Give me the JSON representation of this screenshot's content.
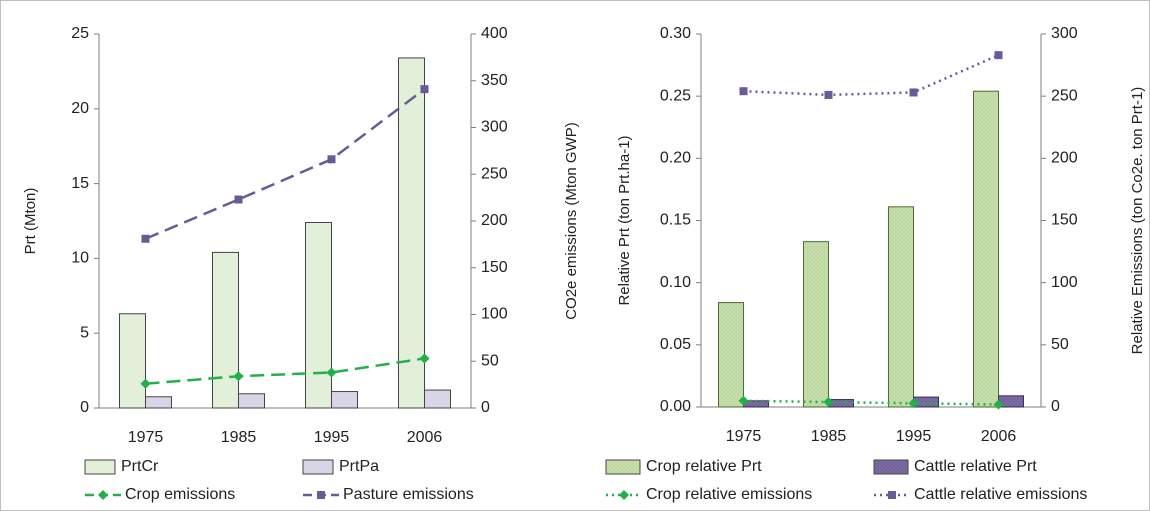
{
  "chart_data": [
    {
      "type": "bar",
      "categories": [
        "1975",
        "1985",
        "1995",
        "2006"
      ],
      "ylabel": "Prt (Mton)",
      "y2label": "CO2e emissions  (Mton GWP)",
      "ylim": [
        0,
        25
      ],
      "y2lim": [
        0,
        400
      ],
      "yticks": [
        "0",
        "5",
        "10",
        "15",
        "20",
        "25"
      ],
      "y2ticks": [
        "0",
        "50",
        "100",
        "150",
        "200",
        "250",
        "300",
        "350",
        "400"
      ],
      "series": [
        {
          "name": "PrtCr",
          "kind": "bar",
          "axis": "left",
          "color": "#e2efd9",
          "values": [
            6.3,
            10.4,
            12.4,
            23.4
          ]
        },
        {
          "name": "PrtPa",
          "kind": "bar",
          "axis": "left",
          "color": "#dad5e6",
          "values": [
            0.75,
            0.95,
            1.1,
            1.2
          ]
        },
        {
          "name": "Crop emissions",
          "kind": "line",
          "axis": "right",
          "color": "#22b04b",
          "dash": "long-dash",
          "marker": "diamond",
          "values": [
            26,
            34,
            38,
            53
          ]
        },
        {
          "name": "Pasture emissions",
          "kind": "line",
          "axis": "right",
          "color": "#6a5a96",
          "dash": "long-dash",
          "marker": "square",
          "values": [
            181,
            223,
            266,
            341
          ]
        }
      ],
      "legend": "bottom",
      "grid": false
    },
    {
      "type": "bar",
      "categories": [
        "1975",
        "1985",
        "1995",
        "2006"
      ],
      "ylabel": "Relative  Prt  (ton Prt.ha-1)",
      "y2label": "Relative  Emissions  (ton Co2e. ton Prt-1)",
      "ylim": [
        0,
        0.3
      ],
      "y2lim": [
        0,
        300
      ],
      "yticks": [
        "0.00",
        "0.05",
        "0.10",
        "0.15",
        "0.20",
        "0.25",
        "0.30"
      ],
      "y2ticks": [
        "0",
        "50",
        "100",
        "150",
        "200",
        "250",
        "300"
      ],
      "series": [
        {
          "name": "Crop relative Prt",
          "kind": "bar",
          "axis": "left",
          "color": "#c5deaa",
          "values": [
            0.084,
            0.133,
            0.161,
            0.254
          ]
        },
        {
          "name": "Cattle relative Prt",
          "kind": "bar",
          "axis": "left",
          "color": "#7d6ba3",
          "values": [
            0.005,
            0.006,
            0.008,
            0.009
          ]
        },
        {
          "name": "Crop relative emissions",
          "kind": "line",
          "axis": "right",
          "color": "#22b04b",
          "dash": "dotted",
          "marker": "diamond",
          "values": [
            5,
            4,
            3,
            2
          ]
        },
        {
          "name": "Cattle relative emissions",
          "kind": "line",
          "axis": "right",
          "color": "#6a5a96",
          "dash": "dotted",
          "marker": "square",
          "values": [
            254,
            251,
            253,
            283
          ]
        }
      ],
      "legend": "bottom",
      "grid": false
    }
  ]
}
